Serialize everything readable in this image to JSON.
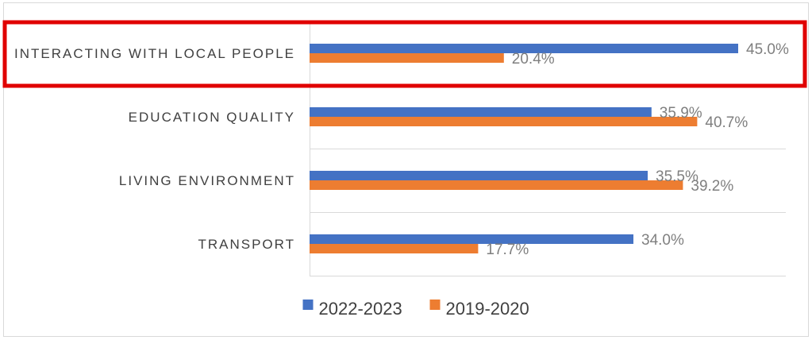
{
  "chart_data": {
    "type": "bar",
    "orientation": "horizontal",
    "title": "",
    "xlabel": "",
    "ylabel": "",
    "categories": [
      "INTERACTING WITH LOCAL PEOPLE",
      "EDUCATION QUALITY",
      "LIVING ENVIRONMENT",
      "TRANSPORT"
    ],
    "series": [
      {
        "name": "2022-2023",
        "values": [
          45.0,
          35.9,
          35.5,
          34.0
        ],
        "labels": [
          "45.0%",
          "35.9%",
          "35.5%",
          "34.0%"
        ],
        "color": "#4472c4"
      },
      {
        "name": "2019-2020",
        "values": [
          20.4,
          40.7,
          39.2,
          17.7
        ],
        "labels": [
          "20.4%",
          "40.7%",
          "39.2%",
          "17.7%"
        ],
        "color": "#ed7d31"
      }
    ],
    "xlim": [
      0,
      50
    ],
    "grid": "horizontal category separators",
    "legend": "bottom",
    "highlight": {
      "category": "INTERACTING WITH LOCAL PEOPLE",
      "color": "#e00000"
    }
  }
}
